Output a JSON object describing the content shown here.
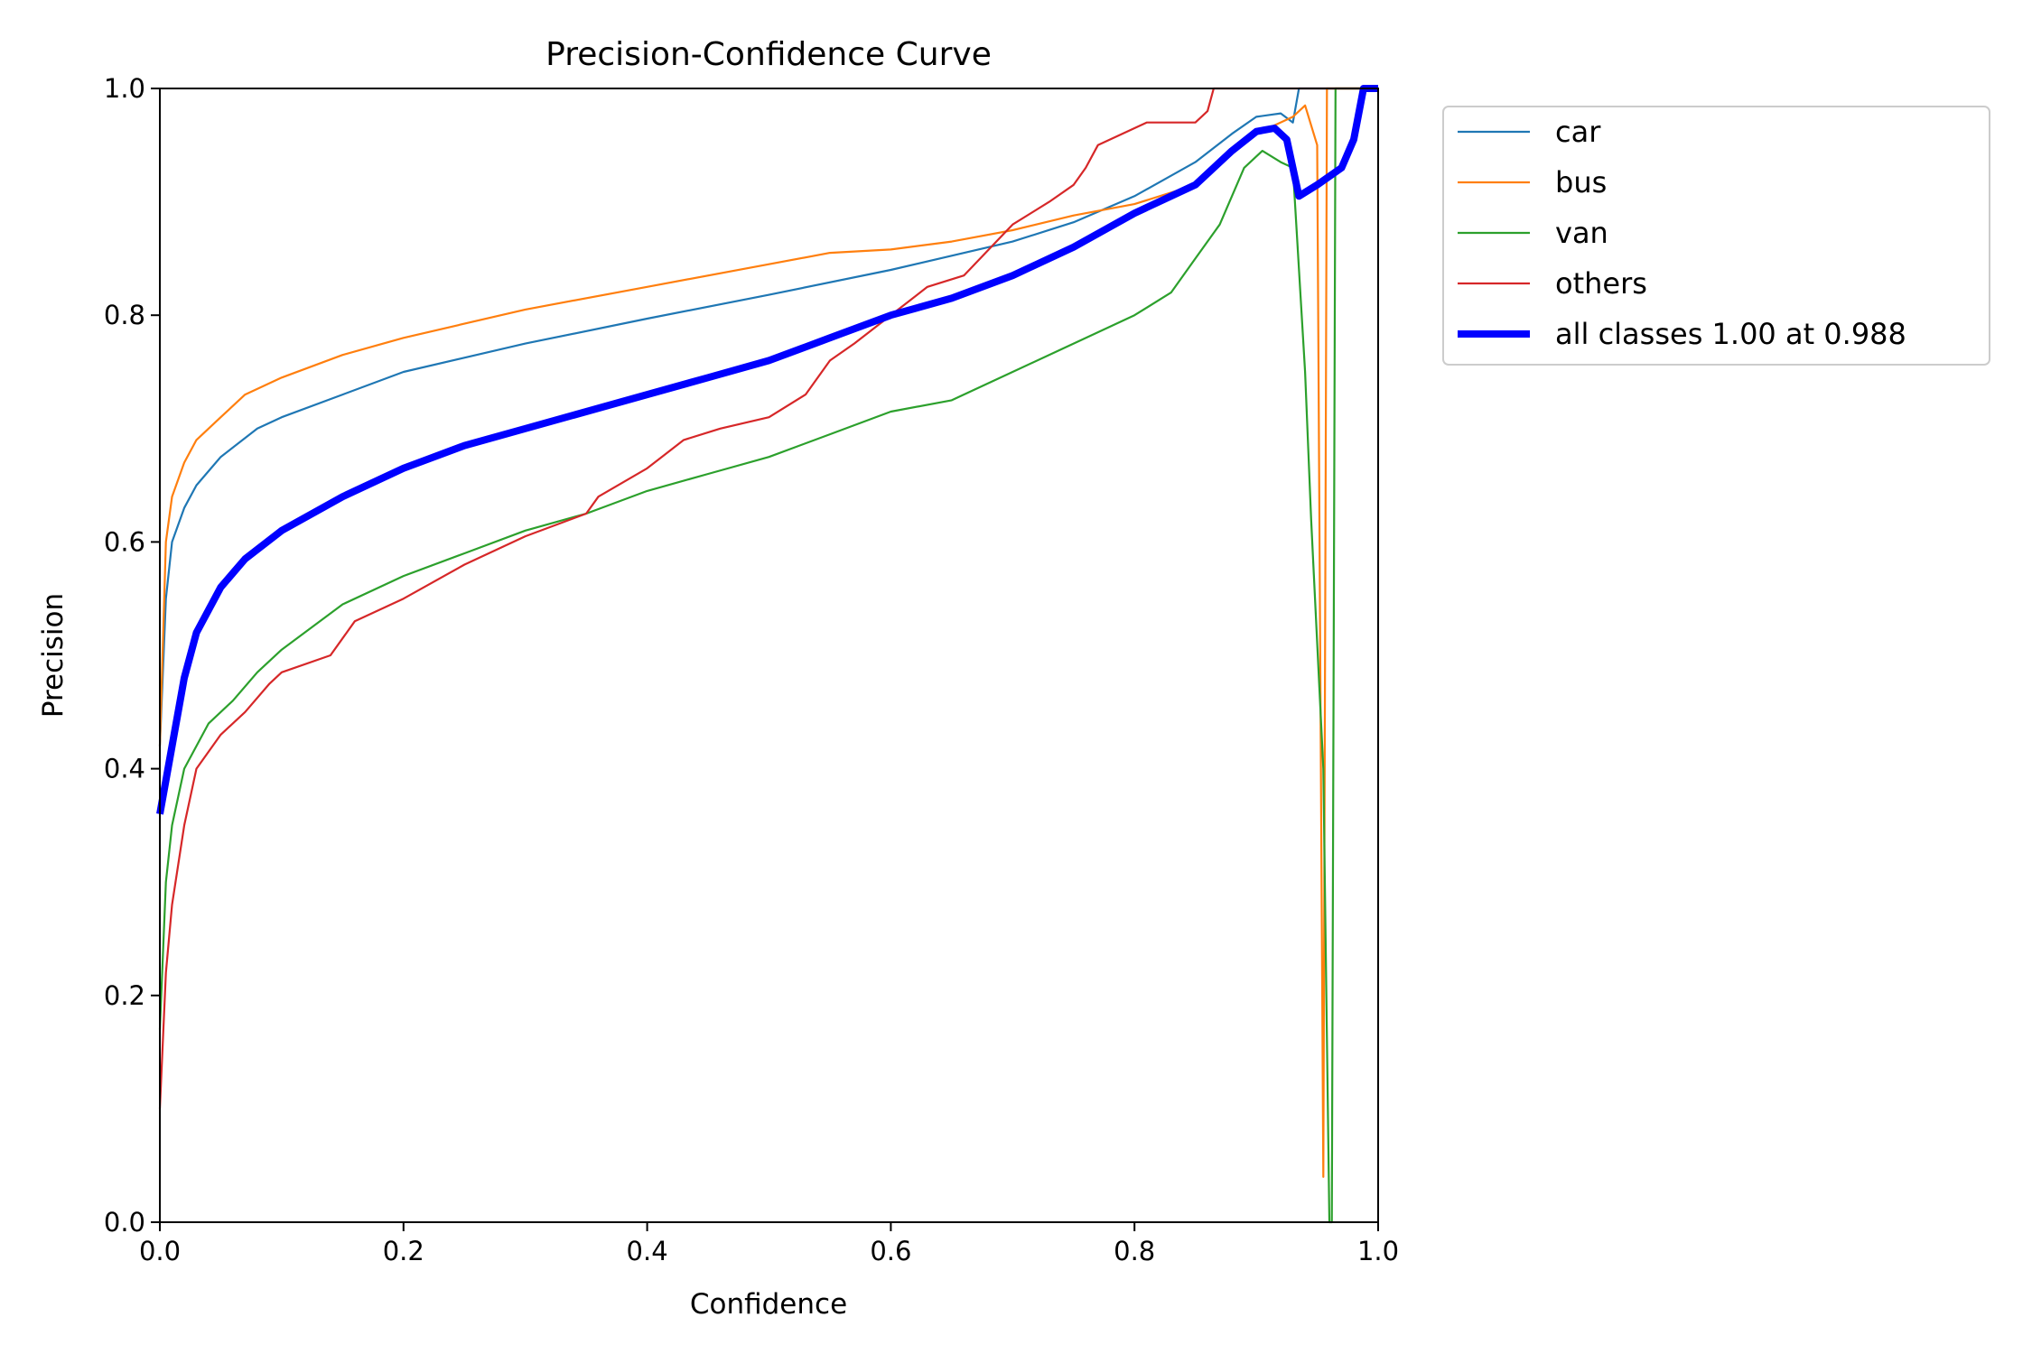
{
  "chart_data": {
    "type": "line",
    "title": "Precision-Confidence Curve",
    "xlabel": "Confidence",
    "ylabel": "Precision",
    "xlim": [
      0,
      1
    ],
    "ylim": [
      0,
      1
    ],
    "xticks": [
      "0.0",
      "0.2",
      "0.4",
      "0.6",
      "0.8",
      "1.0"
    ],
    "yticks": [
      "0.0",
      "0.2",
      "0.4",
      "0.6",
      "0.8",
      "1.0"
    ],
    "grid": false,
    "legend_position": "outside-top-right",
    "series": [
      {
        "name": "car",
        "color": "#1f77b4",
        "linewidth": "thin",
        "x": [
          0,
          0.005,
          0.01,
          0.02,
          0.03,
          0.05,
          0.08,
          0.1,
          0.15,
          0.2,
          0.3,
          0.4,
          0.5,
          0.6,
          0.7,
          0.75,
          0.8,
          0.85,
          0.88,
          0.9,
          0.92,
          0.93,
          0.935,
          0.94,
          1.0
        ],
        "y": [
          0.42,
          0.55,
          0.6,
          0.63,
          0.65,
          0.675,
          0.7,
          0.71,
          0.73,
          0.75,
          0.775,
          0.797,
          0.818,
          0.84,
          0.865,
          0.882,
          0.905,
          0.935,
          0.96,
          0.975,
          0.978,
          0.97,
          1.0,
          1.0,
          1.0
        ]
      },
      {
        "name": "bus",
        "color": "#ff7f0e",
        "linewidth": "thin",
        "x": [
          0,
          0.005,
          0.01,
          0.02,
          0.03,
          0.05,
          0.07,
          0.1,
          0.15,
          0.2,
          0.3,
          0.4,
          0.5,
          0.55,
          0.6,
          0.65,
          0.7,
          0.75,
          0.8,
          0.85,
          0.9,
          0.93,
          0.94,
          0.95,
          0.955,
          0.958,
          1.0
        ],
        "y": [
          0.42,
          0.6,
          0.64,
          0.67,
          0.69,
          0.71,
          0.73,
          0.745,
          0.765,
          0.78,
          0.805,
          0.825,
          0.845,
          0.855,
          0.858,
          0.865,
          0.875,
          0.888,
          0.898,
          0.915,
          0.96,
          0.975,
          0.985,
          0.95,
          0.04,
          1.0,
          1.0
        ]
      },
      {
        "name": "van",
        "color": "#2ca02c",
        "linewidth": "thin",
        "x": [
          0,
          0.005,
          0.01,
          0.02,
          0.04,
          0.06,
          0.08,
          0.1,
          0.15,
          0.2,
          0.25,
          0.3,
          0.35,
          0.4,
          0.45,
          0.5,
          0.55,
          0.6,
          0.65,
          0.7,
          0.75,
          0.8,
          0.83,
          0.85,
          0.87,
          0.89,
          0.905,
          0.92,
          0.93,
          0.94,
          0.945,
          0.955,
          0.96,
          0.962,
          0.965,
          1.0
        ],
        "y": [
          0.17,
          0.3,
          0.35,
          0.4,
          0.44,
          0.46,
          0.485,
          0.505,
          0.545,
          0.57,
          0.59,
          0.61,
          0.625,
          0.645,
          0.66,
          0.675,
          0.695,
          0.715,
          0.725,
          0.75,
          0.775,
          0.8,
          0.82,
          0.85,
          0.88,
          0.93,
          0.945,
          0.935,
          0.93,
          0.75,
          0.62,
          0.4,
          0.0,
          0.0,
          1.0,
          1.0
        ]
      },
      {
        "name": "others",
        "color": "#d62728",
        "linewidth": "thin",
        "x": [
          0,
          0.005,
          0.01,
          0.02,
          0.03,
          0.05,
          0.07,
          0.09,
          0.1,
          0.14,
          0.16,
          0.2,
          0.25,
          0.3,
          0.35,
          0.36,
          0.4,
          0.43,
          0.46,
          0.5,
          0.53,
          0.55,
          0.57,
          0.6,
          0.63,
          0.66,
          0.7,
          0.73,
          0.75,
          0.76,
          0.77,
          0.79,
          0.81,
          0.85,
          0.86,
          0.865,
          1.0
        ],
        "y": [
          0.1,
          0.22,
          0.28,
          0.35,
          0.4,
          0.43,
          0.45,
          0.475,
          0.485,
          0.5,
          0.53,
          0.55,
          0.58,
          0.605,
          0.625,
          0.64,
          0.665,
          0.69,
          0.7,
          0.71,
          0.73,
          0.76,
          0.775,
          0.8,
          0.825,
          0.835,
          0.88,
          0.9,
          0.915,
          0.93,
          0.95,
          0.96,
          0.97,
          0.97,
          0.98,
          1.0,
          1.0
        ]
      },
      {
        "name": "all classes 1.00 at 0.988",
        "color": "#0000ff",
        "linewidth": "thick",
        "x": [
          0,
          0.01,
          0.02,
          0.03,
          0.05,
          0.07,
          0.1,
          0.15,
          0.2,
          0.25,
          0.3,
          0.35,
          0.4,
          0.45,
          0.5,
          0.55,
          0.6,
          0.65,
          0.7,
          0.75,
          0.8,
          0.85,
          0.88,
          0.9,
          0.915,
          0.925,
          0.935,
          0.95,
          0.97,
          0.98,
          0.988,
          1.0
        ],
        "y": [
          0.36,
          0.42,
          0.48,
          0.52,
          0.56,
          0.585,
          0.61,
          0.64,
          0.665,
          0.685,
          0.7,
          0.715,
          0.73,
          0.745,
          0.76,
          0.78,
          0.8,
          0.815,
          0.835,
          0.86,
          0.89,
          0.915,
          0.945,
          0.962,
          0.965,
          0.955,
          0.905,
          0.915,
          0.93,
          0.955,
          1.0,
          1.0
        ]
      }
    ]
  }
}
